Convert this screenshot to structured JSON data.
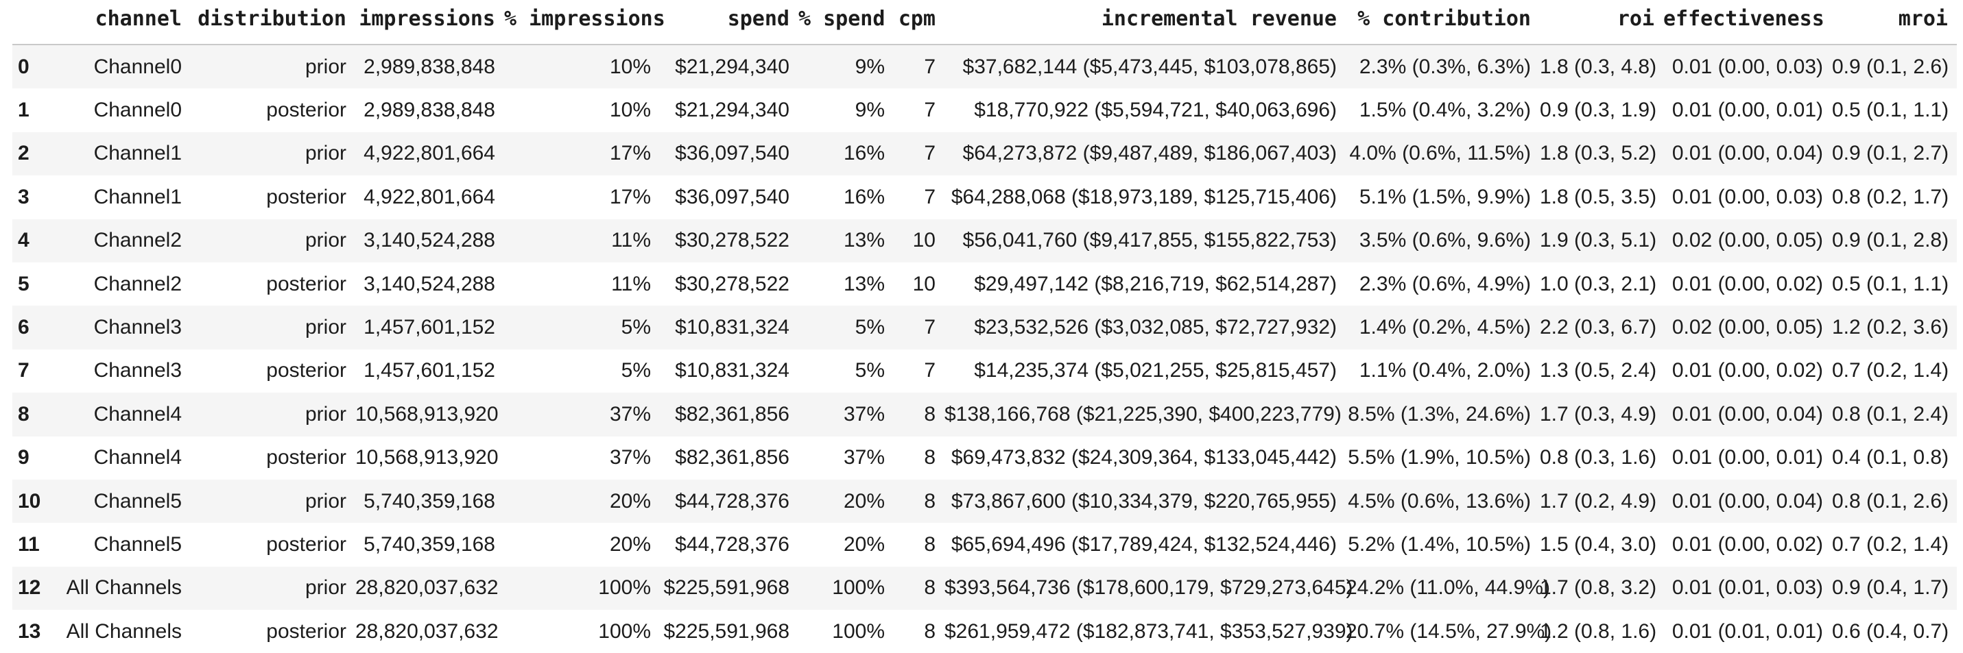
{
  "colors": {
    "row_stripe": "#f5f5f5",
    "header_rule": "#c9c9c9",
    "text": "#1c1c1c",
    "background": "#ffffff"
  },
  "table": {
    "columns": [
      {
        "key": "index",
        "label": ""
      },
      {
        "key": "channel",
        "label": "channel"
      },
      {
        "key": "distribution",
        "label": "distribution"
      },
      {
        "key": "impressions",
        "label": "impressions"
      },
      {
        "key": "pct_impressions",
        "label": "% impressions"
      },
      {
        "key": "spend",
        "label": "spend"
      },
      {
        "key": "pct_spend",
        "label": "% spend"
      },
      {
        "key": "cpm",
        "label": "cpm"
      },
      {
        "key": "incremental_revenue",
        "label": "incremental revenue"
      },
      {
        "key": "pct_contribution",
        "label": "% contribution"
      },
      {
        "key": "roi",
        "label": "roi"
      },
      {
        "key": "effectiveness",
        "label": "effectiveness"
      },
      {
        "key": "mroi",
        "label": "mroi"
      }
    ],
    "rows": [
      [
        "0",
        "Channel0",
        "prior",
        "2,989,838,848",
        "10%",
        "$21,294,340",
        "9%",
        "7",
        "$37,682,144 ($5,473,445, $103,078,865)",
        "2.3% (0.3%, 6.3%)",
        "1.8 (0.3, 4.8)",
        "0.01 (0.00, 0.03)",
        "0.9 (0.1, 2.6)"
      ],
      [
        "1",
        "Channel0",
        "posterior",
        "2,989,838,848",
        "10%",
        "$21,294,340",
        "9%",
        "7",
        "$18,770,922 ($5,594,721, $40,063,696)",
        "1.5% (0.4%, 3.2%)",
        "0.9 (0.3, 1.9)",
        "0.01 (0.00, 0.01)",
        "0.5 (0.1, 1.1)"
      ],
      [
        "2",
        "Channel1",
        "prior",
        "4,922,801,664",
        "17%",
        "$36,097,540",
        "16%",
        "7",
        "$64,273,872 ($9,487,489, $186,067,403)",
        "4.0% (0.6%, 11.5%)",
        "1.8 (0.3, 5.2)",
        "0.01 (0.00, 0.04)",
        "0.9 (0.1, 2.7)"
      ],
      [
        "3",
        "Channel1",
        "posterior",
        "4,922,801,664",
        "17%",
        "$36,097,540",
        "16%",
        "7",
        "$64,288,068 ($18,973,189, $125,715,406)",
        "5.1% (1.5%, 9.9%)",
        "1.8 (0.5, 3.5)",
        "0.01 (0.00, 0.03)",
        "0.8 (0.2, 1.7)"
      ],
      [
        "4",
        "Channel2",
        "prior",
        "3,140,524,288",
        "11%",
        "$30,278,522",
        "13%",
        "10",
        "$56,041,760 ($9,417,855, $155,822,753)",
        "3.5% (0.6%, 9.6%)",
        "1.9 (0.3, 5.1)",
        "0.02 (0.00, 0.05)",
        "0.9 (0.1, 2.8)"
      ],
      [
        "5",
        "Channel2",
        "posterior",
        "3,140,524,288",
        "11%",
        "$30,278,522",
        "13%",
        "10",
        "$29,497,142 ($8,216,719, $62,514,287)",
        "2.3% (0.6%, 4.9%)",
        "1.0 (0.3, 2.1)",
        "0.01 (0.00, 0.02)",
        "0.5 (0.1, 1.1)"
      ],
      [
        "6",
        "Channel3",
        "prior",
        "1,457,601,152",
        "5%",
        "$10,831,324",
        "5%",
        "7",
        "$23,532,526 ($3,032,085, $72,727,932)",
        "1.4% (0.2%, 4.5%)",
        "2.2 (0.3, 6.7)",
        "0.02 (0.00, 0.05)",
        "1.2 (0.2, 3.6)"
      ],
      [
        "7",
        "Channel3",
        "posterior",
        "1,457,601,152",
        "5%",
        "$10,831,324",
        "5%",
        "7",
        "$14,235,374 ($5,021,255, $25,815,457)",
        "1.1% (0.4%, 2.0%)",
        "1.3 (0.5, 2.4)",
        "0.01 (0.00, 0.02)",
        "0.7 (0.2, 1.4)"
      ],
      [
        "8",
        "Channel4",
        "prior",
        "10,568,913,920",
        "37%",
        "$82,361,856",
        "37%",
        "8",
        "$138,166,768 ($21,225,390, $400,223,779)",
        "8.5% (1.3%, 24.6%)",
        "1.7 (0.3, 4.9)",
        "0.01 (0.00, 0.04)",
        "0.8 (0.1, 2.4)"
      ],
      [
        "9",
        "Channel4",
        "posterior",
        "10,568,913,920",
        "37%",
        "$82,361,856",
        "37%",
        "8",
        "$69,473,832 ($24,309,364, $133,045,442)",
        "5.5% (1.9%, 10.5%)",
        "0.8 (0.3, 1.6)",
        "0.01 (0.00, 0.01)",
        "0.4 (0.1, 0.8)"
      ],
      [
        "10",
        "Channel5",
        "prior",
        "5,740,359,168",
        "20%",
        "$44,728,376",
        "20%",
        "8",
        "$73,867,600 ($10,334,379, $220,765,955)",
        "4.5% (0.6%, 13.6%)",
        "1.7 (0.2, 4.9)",
        "0.01 (0.00, 0.04)",
        "0.8 (0.1, 2.6)"
      ],
      [
        "11",
        "Channel5",
        "posterior",
        "5,740,359,168",
        "20%",
        "$44,728,376",
        "20%",
        "8",
        "$65,694,496 ($17,789,424, $132,524,446)",
        "5.2% (1.4%, 10.5%)",
        "1.5 (0.4, 3.0)",
        "0.01 (0.00, 0.02)",
        "0.7 (0.2, 1.4)"
      ],
      [
        "12",
        "All Channels",
        "prior",
        "28,820,037,632",
        "100%",
        "$225,591,968",
        "100%",
        "8",
        "$393,564,736 ($178,600,179, $729,273,645)",
        "24.2% (11.0%, 44.9%)",
        "1.7 (0.8, 3.2)",
        "0.01 (0.01, 0.03)",
        "0.9 (0.4, 1.7)"
      ],
      [
        "13",
        "All Channels",
        "posterior",
        "28,820,037,632",
        "100%",
        "$225,591,968",
        "100%",
        "8",
        "$261,959,472 ($182,873,741, $353,527,939)",
        "20.7% (14.5%, 27.9%)",
        "1.2 (0.8, 1.6)",
        "0.01 (0.01, 0.01)",
        "0.6 (0.4, 0.7)"
      ]
    ]
  }
}
